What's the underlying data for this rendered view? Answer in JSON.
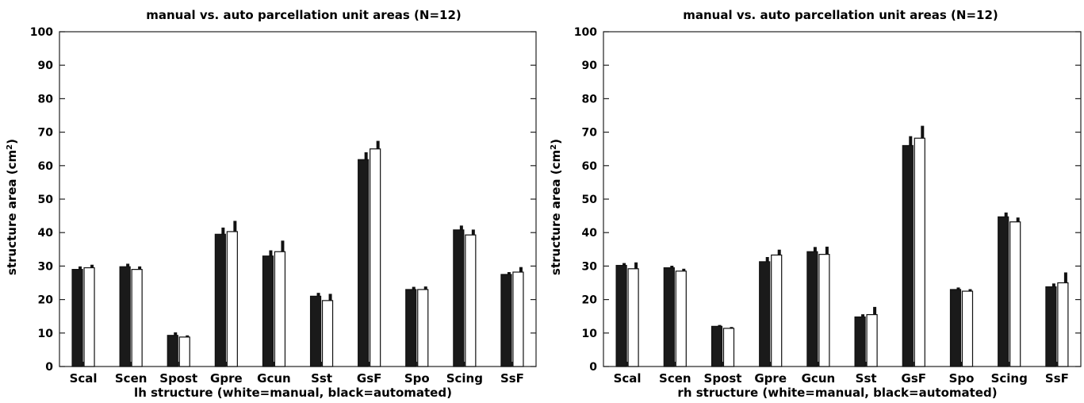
{
  "chart_data": [
    {
      "type": "bar",
      "title": "manual vs. auto parcellation unit areas (N=12)",
      "xlabel": "lh structure (white=manual, black=automated)",
      "ylabel": "structure area (cm²)",
      "ylabel_main": "structure area (cm",
      "ylabel_sup": "2",
      "ylabel_close": ")",
      "ylim": [
        0,
        100
      ],
      "yticks": [
        0,
        10,
        20,
        30,
        40,
        50,
        60,
        70,
        80,
        90,
        100
      ],
      "categories": [
        "Scal",
        "Scen",
        "Spost",
        "Gpre",
        "Gcun",
        "Sst",
        "GsF",
        "Spo",
        "Scing",
        "SsF"
      ],
      "series": [
        {
          "name": "automated",
          "color": "#1a1a1a",
          "values": [
            29,
            29.8,
            9.3,
            39.5,
            33,
            21,
            61.8,
            23,
            40.8,
            27.5
          ],
          "errors": [
            0.9,
            0.9,
            0.9,
            2.0,
            1.7,
            1.0,
            2.2,
            0.8,
            1.3,
            0.7
          ]
        },
        {
          "name": "manual",
          "color": "#ffffff",
          "values": [
            29.5,
            29,
            8.8,
            40.3,
            34.3,
            19.7,
            65,
            23,
            39.3,
            28.2
          ],
          "errors": [
            0.9,
            0.9,
            0.5,
            3.2,
            3.3,
            2.0,
            2.4,
            0.9,
            1.6,
            1.5
          ]
        }
      ],
      "grid": false
    },
    {
      "type": "bar",
      "title": "manual vs. auto parcellation unit areas (N=12)",
      "xlabel": "rh structure (white=manual, black=automated)",
      "ylabel": "structure area (cm²)",
      "ylabel_main": "structure area (cm",
      "ylabel_sup": "2",
      "ylabel_close": ")",
      "ylim": [
        0,
        100
      ],
      "yticks": [
        0,
        10,
        20,
        30,
        40,
        50,
        60,
        70,
        80,
        90,
        100
      ],
      "categories": [
        "Scal",
        "Scen",
        "Spost",
        "Gpre",
        "Gcun",
        "Sst",
        "GsF",
        "Spo",
        "Scing",
        "SsF"
      ],
      "series": [
        {
          "name": "automated",
          "color": "#1a1a1a",
          "values": [
            30.2,
            29.5,
            12,
            31.3,
            34.3,
            14.8,
            66,
            23,
            44.7,
            23.8
          ],
          "errors": [
            0.7,
            0.6,
            0.4,
            1.4,
            1.4,
            0.8,
            2.8,
            0.6,
            1.3,
            1.0
          ]
        },
        {
          "name": "manual",
          "color": "#ffffff",
          "values": [
            29.2,
            28.5,
            11.4,
            33.3,
            33.5,
            15.5,
            68.2,
            22.5,
            43.2,
            25
          ],
          "errors": [
            1.9,
            0.7,
            0.4,
            1.6,
            2.3,
            2.3,
            3.7,
            0.6,
            1.3,
            3.1
          ]
        }
      ],
      "grid": false
    }
  ]
}
